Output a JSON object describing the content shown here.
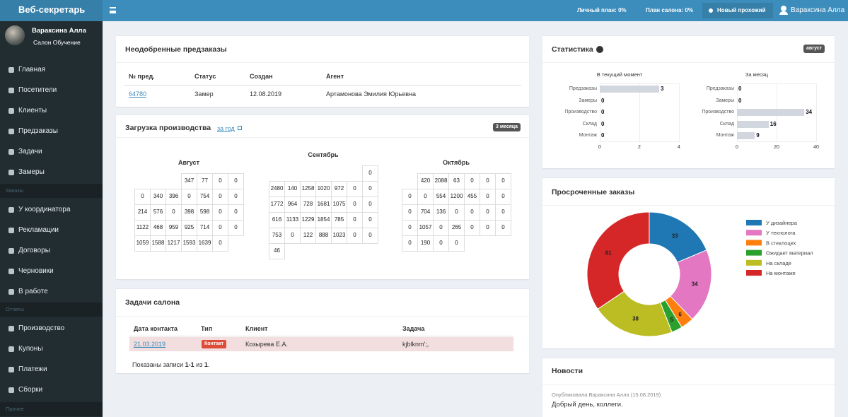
{
  "header": {
    "brand": "Веб-секретарь",
    "personal_plan": "Личный план: 0%",
    "salon_plan": "План салона: 0%",
    "new_visitor": "Новый прохожий",
    "user": "Вараксина Алла"
  },
  "sidebar": {
    "user_name": "Вараксина Алла",
    "user_salon": "Салон Обучение",
    "main_items": [
      "Главная",
      "Посетители",
      "Клиенты",
      "Предзаказы",
      "Задачи",
      "Замеры"
    ],
    "orders_section": "Заказы",
    "order_items": [
      "У координатора",
      "Рекламации",
      "Договоры",
      "Черновики",
      "В работе"
    ],
    "reports_section": "Отчеты",
    "report_items": [
      "Производство",
      "Купоны",
      "Платежи",
      "Сборки"
    ],
    "other_section": "Прочее"
  },
  "preorders": {
    "title": "Неодобренные предзаказы",
    "columns": [
      "№ пред.",
      "Статус",
      "Создан",
      "Агент"
    ],
    "rows": [
      [
        "64780",
        "Замер",
        "12.08.2019",
        "Артамонова Эмилия Юрьевна"
      ]
    ]
  },
  "production": {
    "title": "Загрузка производства",
    "link": "за год",
    "badge": "3 месяца",
    "months": [
      {
        "name": "Август",
        "weeks": [
          [
            null,
            null,
            null,
            347,
            77,
            0,
            0
          ],
          [
            0,
            340,
            396,
            0,
            754,
            0,
            0
          ],
          [
            214,
            576,
            0,
            398,
            598,
            0,
            0
          ],
          [
            1122,
            468,
            959,
            925,
            714,
            0,
            0
          ],
          [
            1059,
            1588,
            1217,
            1593,
            1639,
            0
          ]
        ]
      },
      {
        "name": "Сентябрь",
        "weeks": [
          [
            null,
            null,
            null,
            null,
            null,
            null,
            0
          ],
          [
            2480,
            140,
            1258,
            1020,
            972,
            0,
            0
          ],
          [
            1772,
            964,
            728,
            1681,
            1075,
            0,
            0
          ],
          [
            616,
            1133,
            1229,
            1854,
            785,
            0,
            0
          ],
          [
            753,
            0,
            122,
            888,
            1023,
            0,
            0
          ],
          [
            46
          ]
        ]
      },
      {
        "name": "Октябрь",
        "weeks": [
          [
            null,
            420,
            2088,
            63,
            0,
            0,
            0
          ],
          [
            0,
            0,
            554,
            1200,
            455,
            0,
            0
          ],
          [
            0,
            704,
            136,
            0,
            0,
            0,
            0
          ],
          [
            0,
            1057,
            0,
            265,
            0,
            0,
            0
          ],
          [
            0,
            190,
            0,
            0
          ]
        ]
      }
    ]
  },
  "tasks": {
    "title": "Задачи салона",
    "columns": [
      "Дата контакта",
      "Тип",
      "Клиент",
      "Задача"
    ],
    "rows": [
      [
        "21.03.2019",
        "Контакт",
        "Козырева Е.А.",
        "kjblknm';,"
      ]
    ],
    "footer": [
      "Показаны записи ",
      "1-1",
      " из ",
      "1",
      "."
    ]
  },
  "statistics": {
    "title": "Статистика",
    "badge": "август",
    "charts": [
      {
        "type": "bar",
        "title": "В текущий момент",
        "categories": [
          "Предзаказы",
          "Замеры",
          "Производство",
          "Склад",
          "Монтаж"
        ],
        "values": [
          3,
          0,
          0,
          0,
          0
        ],
        "color": "#d2d6de",
        "xlim": [
          0,
          4
        ],
        "xticks": [
          0,
          2,
          4
        ],
        "grid": true
      },
      {
        "type": "bar",
        "title": "За месяц",
        "categories": [
          "Предзаказы",
          "Замеры",
          "Производство",
          "Склад",
          "Монтаж"
        ],
        "values": [
          0,
          0,
          34,
          16,
          9
        ],
        "color": "#d2d6de",
        "xlim": [
          0,
          40
        ],
        "xticks": [
          0,
          20,
          40
        ],
        "grid": true
      }
    ]
  },
  "overdue": {
    "title": "Просроченные заказы",
    "chart_data": {
      "type": "pie",
      "categories": [
        "У дизайнера",
        "У технолога",
        "В стеклоцех",
        "Ожидает материал",
        "На складе",
        "На монтаже"
      ],
      "values": [
        33,
        34,
        6,
        5,
        38,
        61
      ],
      "colors": [
        "#1f77b4",
        "#e377c2",
        "#ff7f0e",
        "#2ca02c",
        "#bcbd22",
        "#d62728"
      ],
      "legend": "right"
    }
  },
  "news": {
    "title": "Новости",
    "items": [
      {
        "meta": "Опубликовала Вараксина Алла (15.08.2019)",
        "text": "Добрый день, коллеги."
      }
    ]
  }
}
